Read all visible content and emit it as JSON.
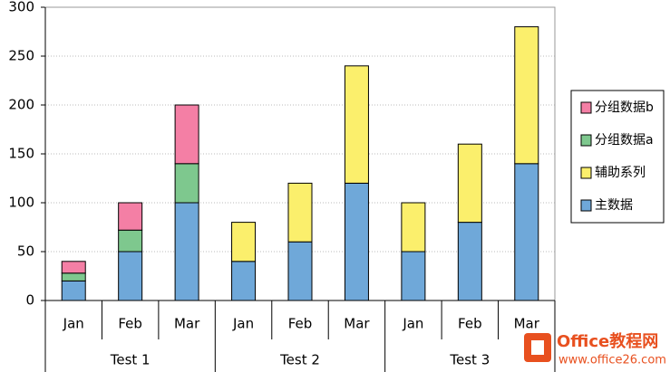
{
  "chart_data": {
    "type": "stacked_bar",
    "categories": [
      "Jan",
      "Feb",
      "Mar",
      "Jan",
      "Feb",
      "Mar",
      "Jan",
      "Feb",
      "Mar"
    ],
    "groups": [
      "Test 1",
      "Test 2",
      "Test 3"
    ],
    "series": [
      {
        "name": "主数据",
        "color": "#6fa8d9",
        "values": [
          20,
          50,
          100,
          40,
          60,
          120,
          50,
          80,
          140
        ]
      },
      {
        "name": "辅助系列",
        "color": "#fbef6c",
        "values": [
          null,
          null,
          null,
          40,
          60,
          120,
          50,
          80,
          140
        ]
      },
      {
        "name": "分组数据a",
        "color": "#7ec88e",
        "values": [
          8,
          22,
          40,
          null,
          null,
          null,
          null,
          null,
          null
        ]
      },
      {
        "name": "分组数据b",
        "color": "#f47fa5",
        "values": [
          12,
          28,
          60,
          null,
          null,
          null,
          null,
          null,
          null
        ]
      }
    ],
    "ylim": [
      0,
      300
    ],
    "yticks": [
      0,
      50,
      100,
      150,
      200,
      250,
      300
    ],
    "grid": true,
    "legend": "right",
    "watermark": {
      "text": "Office教程网",
      "url": "www.office26.com"
    }
  }
}
